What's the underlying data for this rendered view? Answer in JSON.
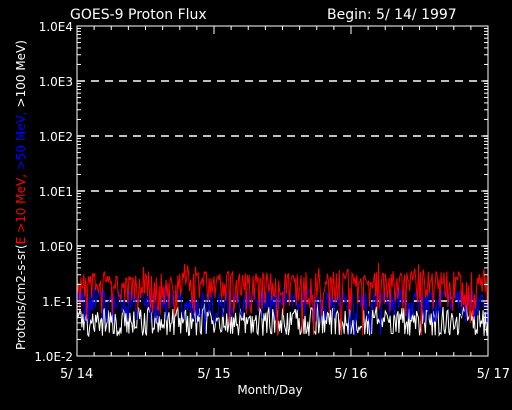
{
  "chart_data": {
    "type": "line",
    "title": "GOES-9 Proton Flux",
    "title_right": "Begin: 5/ 14/ 1997",
    "xlabel": "Month/Day",
    "ylabel": {
      "prefix": "Protons/cm2-s-sr(",
      "series_labels": [
        {
          "text": "E >10 MeV,",
          "color": "#ff0000"
        },
        {
          "text": " >50 MeV,",
          "color": "#0000ff"
        },
        {
          "text": " >100 MeV",
          "color": "#ffffff"
        }
      ],
      "suffix": ")"
    },
    "x_ticks": [
      "5/ 14",
      "5/ 15",
      "5/ 16",
      "5/ 17"
    ],
    "x_range_days": [
      0,
      3
    ],
    "y_scale": "log",
    "y_range": [
      0.01,
      10000
    ],
    "y_ticks": [
      "1.0E-2",
      "1.E-1",
      "1.0E0",
      "1.0E1",
      "1.0E2",
      "1.0E3",
      "1.0E4"
    ],
    "gridlines": "dashed horizontal at each decade",
    "series": [
      {
        "color": "#ff0000",
        "baseline": 0.2,
        "spread": 0.15
      },
      {
        "color": "#0000ff",
        "baseline": 0.1,
        "spread": 0.06
      },
      {
        "color": "#ffffff",
        "baseline": 0.045,
        "spread": 0.03
      }
    ]
  }
}
